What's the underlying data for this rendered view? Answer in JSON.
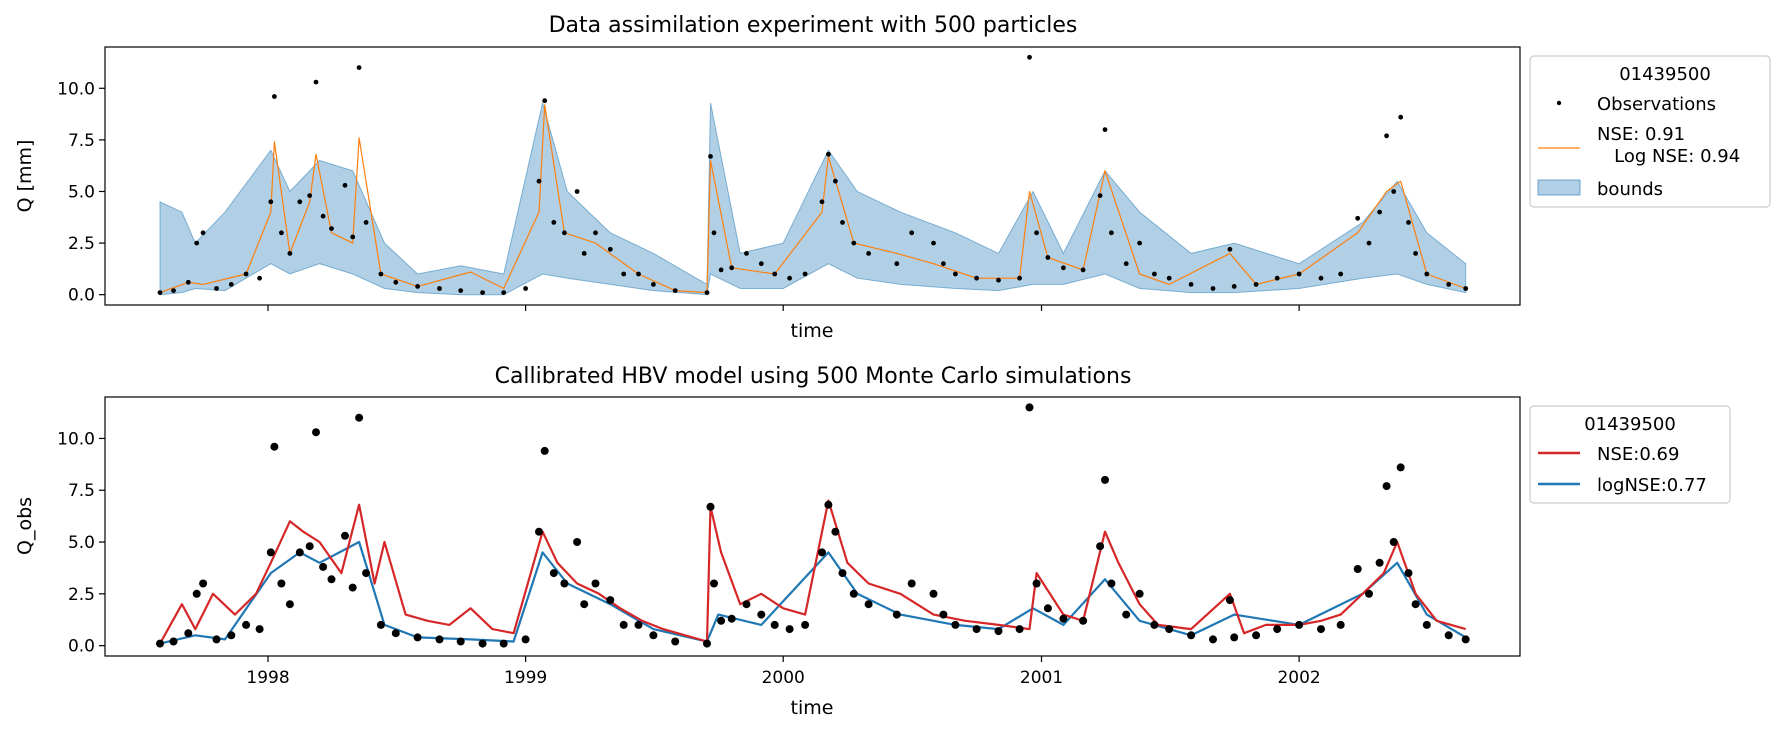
{
  "chart_data": [
    {
      "type": "line",
      "title": "Data assimilation experiment with 500 particles",
      "xlabel": "time",
      "ylabel": "Q [mm]",
      "x_tick_labels_visible": false,
      "xlim": [
        "1997-05-15",
        "2002-11-10"
      ],
      "ylim": [
        -0.5,
        12.0
      ],
      "yticks": [
        "0.0",
        "2.5",
        "5.0",
        "7.5",
        "10.0"
      ],
      "legend": {
        "title": "01439500",
        "placement": "outside-right-top",
        "entries": [
          {
            "label": "Observations",
            "kind": "marker",
            "color": "#000000"
          },
          {
            "label": "NSE: 0.91\n   Log NSE: 0.94",
            "kind": "line",
            "color": "#ff7f0e"
          },
          {
            "label": "bounds",
            "kind": "patch",
            "color": "#1f77b4"
          }
        ]
      },
      "series": [
        {
          "name": "Observations",
          "color": "#000000",
          "x": [
            "1997-08-01",
            "1997-08-20",
            "1997-09-10",
            "1997-09-22",
            "1997-10-01",
            "1997-10-20",
            "1997-11-10",
            "1997-12-01",
            "1997-12-20",
            "1998-01-05",
            "1998-01-10",
            "1998-01-20",
            "1998-02-01",
            "1998-02-15",
            "1998-03-01",
            "1998-03-10",
            "1998-03-20",
            "1998-04-01",
            "1998-04-20",
            "1998-05-01",
            "1998-05-10",
            "1998-05-20",
            "1998-06-10",
            "1998-07-01",
            "1998-08-01",
            "1998-09-01",
            "1998-10-01",
            "1998-11-01",
            "1998-12-01",
            "1999-01-01",
            "1999-01-20",
            "1999-01-28",
            "1999-02-10",
            "1999-02-25",
            "1999-03-15",
            "1999-03-25",
            "1999-04-10",
            "1999-05-01",
            "1999-05-20",
            "1999-06-10",
            "1999-07-01",
            "1999-08-01",
            "1999-09-15",
            "1999-09-20",
            "1999-09-25",
            "1999-10-05",
            "1999-10-20",
            "1999-11-10",
            "1999-12-01",
            "1999-12-20",
            "2000-01-10",
            "2000-02-01",
            "2000-02-25",
            "2000-03-05",
            "2000-03-15",
            "2000-03-25",
            "2000-04-10",
            "2000-05-01",
            "2000-06-10",
            "2000-07-01",
            "2000-08-01",
            "2000-08-15",
            "2000-09-01",
            "2000-10-01",
            "2000-11-01",
            "2000-12-01",
            "2000-12-15",
            "2000-12-25",
            "2001-01-10",
            "2001-02-01",
            "2001-03-01",
            "2001-03-25",
            "2001-04-01",
            "2001-04-10",
            "2001-05-01",
            "2001-05-20",
            "2001-06-10",
            "2001-07-01",
            "2001-08-01",
            "2001-09-01",
            "2001-09-25",
            "2001-10-01",
            "2001-11-01",
            "2001-12-01",
            "2002-01-01",
            "2002-02-01",
            "2002-03-01",
            "2002-03-25",
            "2002-04-10",
            "2002-04-25",
            "2002-05-05",
            "2002-05-15",
            "2002-05-25",
            "2002-06-05",
            "2002-06-15",
            "2002-07-01",
            "2002-08-01",
            "2002-08-25"
          ],
          "values": [
            0.1,
            0.2,
            0.6,
            2.5,
            3.0,
            0.3,
            0.5,
            1.0,
            0.8,
            4.5,
            9.6,
            3.0,
            2.0,
            4.5,
            4.8,
            10.3,
            3.8,
            3.2,
            5.3,
            2.8,
            11.0,
            3.5,
            1.0,
            0.6,
            0.4,
            0.3,
            0.2,
            0.1,
            0.1,
            0.3,
            5.5,
            9.4,
            3.5,
            3.0,
            5.0,
            2.0,
            3.0,
            2.2,
            1.0,
            1.0,
            0.5,
            0.2,
            0.1,
            6.7,
            3.0,
            1.2,
            1.3,
            2.0,
            1.5,
            1.0,
            0.8,
            1.0,
            4.5,
            6.8,
            5.5,
            3.5,
            2.5,
            2.0,
            1.5,
            3.0,
            2.5,
            1.5,
            1.0,
            0.8,
            0.7,
            0.8,
            11.5,
            3.0,
            1.8,
            1.3,
            1.2,
            4.8,
            8.0,
            3.0,
            1.5,
            2.5,
            1.0,
            0.8,
            0.5,
            0.3,
            2.2,
            0.4,
            0.5,
            0.8,
            1.0,
            0.8,
            1.0,
            3.7,
            2.5,
            4.0,
            7.7,
            5.0,
            8.6,
            3.5,
            2.0,
            1.0,
            0.5,
            0.3
          ]
        },
        {
          "name": "NSE: 0.91\n   Log NSE: 0.94",
          "color": "#ff7f0e",
          "x": [
            "1997-08-01",
            "1997-09-10",
            "1997-10-01",
            "1997-12-01",
            "1998-01-05",
            "1998-01-10",
            "1998-02-01",
            "1998-03-01",
            "1998-03-10",
            "1998-04-01",
            "1998-05-01",
            "1998-05-10",
            "1998-06-10",
            "1998-08-01",
            "1998-10-15",
            "1998-12-01",
            "1999-01-20",
            "1999-01-28",
            "1999-02-25",
            "1999-04-10",
            "1999-06-10",
            "1999-08-01",
            "1999-09-15",
            "1999-09-20",
            "1999-10-20",
            "1999-12-20",
            "2000-02-25",
            "2000-03-05",
            "2000-04-10",
            "2000-06-10",
            "2000-08-01",
            "2000-10-01",
            "2000-12-01",
            "2000-12-15",
            "2001-01-10",
            "2001-03-01",
            "2001-04-01",
            "2001-05-20",
            "2001-07-01",
            "2001-09-25",
            "2001-11-01",
            "2002-01-01",
            "2002-03-25",
            "2002-05-05",
            "2002-05-25",
            "2002-07-01",
            "2002-08-25"
          ],
          "values": [
            0.1,
            0.6,
            0.5,
            1.0,
            4.0,
            7.4,
            2.0,
            4.5,
            6.8,
            3.0,
            2.5,
            7.6,
            1.0,
            0.4,
            1.1,
            0.3,
            4.0,
            9.2,
            3.0,
            2.5,
            1.0,
            0.2,
            0.1,
            6.5,
            1.3,
            1.0,
            4.0,
            6.7,
            2.5,
            2.0,
            1.5,
            0.8,
            0.8,
            5.0,
            1.8,
            1.2,
            6.0,
            1.0,
            0.5,
            2.0,
            0.5,
            1.0,
            3.0,
            5.0,
            5.5,
            1.0,
            0.3
          ]
        },
        {
          "name": "bounds",
          "color": "#1f77b4",
          "type": "area",
          "x": [
            "1997-08-01",
            "1997-09-01",
            "1997-09-20",
            "1997-11-01",
            "1998-01-05",
            "1998-02-01",
            "1998-03-15",
            "1998-05-01",
            "1998-06-15",
            "1998-08-01",
            "1998-10-01",
            "1998-12-01",
            "1999-01-25",
            "1999-03-01",
            "1999-05-01",
            "1999-07-01",
            "1999-09-15",
            "1999-09-20",
            "1999-11-01",
            "2000-01-01",
            "2000-03-05",
            "2000-04-15",
            "2000-06-15",
            "2000-09-01",
            "2000-11-01",
            "2000-12-20",
            "2001-02-01",
            "2001-04-01",
            "2001-05-20",
            "2001-08-01",
            "2001-10-01",
            "2002-01-01",
            "2002-04-01",
            "2002-05-20",
            "2002-07-01",
            "2002-08-25"
          ],
          "upper": [
            4.5,
            4.0,
            2.5,
            4.0,
            7.0,
            5.0,
            6.5,
            6.0,
            2.5,
            1.0,
            1.4,
            1.0,
            9.3,
            5.0,
            3.0,
            2.0,
            0.5,
            9.3,
            2.0,
            2.5,
            7.0,
            5.0,
            4.0,
            3.0,
            2.0,
            5.0,
            2.0,
            6.0,
            4.0,
            2.0,
            2.5,
            1.5,
            3.5,
            5.5,
            3.0,
            1.5
          ],
          "lower": [
            0.0,
            0.1,
            0.3,
            0.2,
            1.5,
            1.0,
            1.5,
            1.0,
            0.3,
            0.1,
            0.0,
            0.0,
            1.0,
            0.8,
            0.5,
            0.2,
            0.0,
            1.0,
            0.3,
            0.3,
            1.5,
            0.8,
            0.5,
            0.3,
            0.2,
            0.5,
            0.5,
            1.0,
            0.3,
            0.1,
            0.1,
            0.3,
            0.8,
            1.0,
            0.5,
            0.1
          ]
        }
      ]
    },
    {
      "type": "line",
      "title": "Callibrated HBV model using 500 Monte Carlo simulations",
      "xlabel": "time",
      "ylabel": "Q_obs",
      "xlim": [
        "1997-05-15",
        "2002-11-10"
      ],
      "ylim": [
        -0.5,
        12.0
      ],
      "yticks": [
        "0.0",
        "2.5",
        "5.0",
        "7.5",
        "10.0"
      ],
      "xticks": [
        {
          "date": "1998-01-01",
          "label": "1998"
        },
        {
          "date": "1999-01-01",
          "label": "1999"
        },
        {
          "date": "2000-01-01",
          "label": "2000"
        },
        {
          "date": "2001-01-01",
          "label": "2001"
        },
        {
          "date": "2002-01-01",
          "label": "2002"
        }
      ],
      "legend": {
        "title": "01439500",
        "placement": "outside-right-top",
        "entries": [
          {
            "label": "NSE:0.69",
            "kind": "line",
            "color": "#d62728"
          },
          {
            "label": "logNSE:0.77",
            "kind": "line",
            "color": "#1f77b4"
          }
        ]
      },
      "series": [
        {
          "name": "logNSE:0.77",
          "color": "#1f77b4",
          "x": [
            "1997-08-01",
            "1997-09-20",
            "1997-11-01",
            "1998-01-05",
            "1998-02-15",
            "1998-03-15",
            "1998-05-10",
            "1998-06-15",
            "1998-08-01",
            "1998-10-15",
            "1998-12-15",
            "1999-01-25",
            "1999-03-01",
            "1999-05-01",
            "1999-07-01",
            "1999-09-15",
            "1999-10-01",
            "1999-12-01",
            "2000-03-05",
            "2000-04-15",
            "2000-06-15",
            "2000-09-01",
            "2000-11-01",
            "2000-12-20",
            "2001-02-01",
            "2001-04-01",
            "2001-05-20",
            "2001-08-01",
            "2001-10-01",
            "2002-01-01",
            "2002-04-01",
            "2002-05-20",
            "2002-07-01",
            "2002-08-25"
          ],
          "values": [
            0.1,
            0.5,
            0.3,
            3.5,
            4.5,
            4.0,
            5.0,
            1.0,
            0.4,
            0.3,
            0.2,
            4.5,
            3.0,
            2.0,
            0.8,
            0.2,
            1.5,
            1.0,
            4.5,
            2.5,
            1.5,
            1.0,
            0.8,
            1.8,
            1.0,
            3.2,
            1.2,
            0.5,
            1.5,
            1.0,
            2.5,
            4.0,
            1.5,
            0.4
          ]
        },
        {
          "name": "NSE:0.69",
          "color": "#d62728",
          "x": [
            "1997-08-01",
            "1997-09-01",
            "1997-09-20",
            "1997-10-15",
            "1997-11-15",
            "1997-12-15",
            "1998-01-05",
            "1998-02-01",
            "1998-02-20",
            "1998-03-15",
            "1998-04-15",
            "1998-05-10",
            "1998-06-01",
            "1998-06-15",
            "1998-07-15",
            "1998-08-15",
            "1998-09-15",
            "1998-10-15",
            "1998-11-15",
            "1998-12-15",
            "1999-01-25",
            "1999-02-15",
            "1999-03-15",
            "1999-04-15",
            "1999-05-15",
            "1999-06-15",
            "1999-07-15",
            "1999-08-15",
            "1999-09-15",
            "1999-09-20",
            "1999-10-05",
            "1999-11-01",
            "1999-12-01",
            "2000-01-01",
            "2000-02-01",
            "2000-03-05",
            "2000-04-01",
            "2000-05-01",
            "2000-06-15",
            "2000-08-01",
            "2000-09-15",
            "2000-11-01",
            "2000-12-15",
            "2000-12-25",
            "2001-02-01",
            "2001-03-01",
            "2001-04-01",
            "2001-04-20",
            "2001-05-20",
            "2001-06-15",
            "2001-08-01",
            "2001-09-25",
            "2001-10-15",
            "2001-11-15",
            "2002-01-01",
            "2002-02-01",
            "2002-03-01",
            "2002-04-01",
            "2002-05-01",
            "2002-05-20",
            "2002-06-15",
            "2002-07-15",
            "2002-08-25"
          ],
          "values": [
            0.1,
            2.0,
            0.8,
            2.5,
            1.5,
            2.5,
            4.0,
            6.0,
            5.5,
            5.0,
            3.5,
            6.8,
            3.0,
            5.0,
            1.5,
            1.2,
            1.0,
            1.8,
            0.8,
            0.6,
            5.5,
            4.0,
            3.0,
            2.5,
            1.8,
            1.2,
            0.8,
            0.5,
            0.2,
            6.7,
            4.5,
            2.0,
            2.5,
            1.8,
            1.5,
            7.0,
            4.0,
            3.0,
            2.5,
            1.5,
            1.2,
            1.0,
            0.8,
            3.5,
            1.5,
            1.2,
            5.5,
            4.0,
            2.0,
            1.0,
            0.8,
            2.5,
            0.6,
            1.0,
            1.0,
            1.2,
            1.5,
            2.5,
            3.5,
            5.0,
            2.5,
            1.2,
            0.8
          ]
        },
        {
          "name": "Q_obs",
          "color": "#000000",
          "type": "scatter",
          "x": [
            "1997-08-01",
            "1997-08-20",
            "1997-09-10",
            "1997-09-22",
            "1997-10-01",
            "1997-10-20",
            "1997-11-10",
            "1997-12-01",
            "1997-12-20",
            "1998-01-05",
            "1998-01-10",
            "1998-01-20",
            "1998-02-01",
            "1998-02-15",
            "1998-03-01",
            "1998-03-10",
            "1998-03-20",
            "1998-04-01",
            "1998-04-20",
            "1998-05-01",
            "1998-05-10",
            "1998-05-20",
            "1998-06-10",
            "1998-07-01",
            "1998-08-01",
            "1998-09-01",
            "1998-10-01",
            "1998-11-01",
            "1998-12-01",
            "1999-01-01",
            "1999-01-20",
            "1999-01-28",
            "1999-02-10",
            "1999-02-25",
            "1999-03-15",
            "1999-03-25",
            "1999-04-10",
            "1999-05-01",
            "1999-05-20",
            "1999-06-10",
            "1999-07-01",
            "1999-08-01",
            "1999-09-15",
            "1999-09-20",
            "1999-09-25",
            "1999-10-05",
            "1999-10-20",
            "1999-11-10",
            "1999-12-01",
            "1999-12-20",
            "2000-01-10",
            "2000-02-01",
            "2000-02-25",
            "2000-03-05",
            "2000-03-15",
            "2000-03-25",
            "2000-04-10",
            "2000-05-01",
            "2000-06-10",
            "2000-07-01",
            "2000-08-01",
            "2000-08-15",
            "2000-09-01",
            "2000-10-01",
            "2000-11-01",
            "2000-12-01",
            "2000-12-15",
            "2000-12-25",
            "2001-01-10",
            "2001-02-01",
            "2001-03-01",
            "2001-03-25",
            "2001-04-01",
            "2001-04-10",
            "2001-05-01",
            "2001-05-20",
            "2001-06-10",
            "2001-07-01",
            "2001-08-01",
            "2001-09-01",
            "2001-09-25",
            "2001-10-01",
            "2001-11-01",
            "2001-12-01",
            "2002-01-01",
            "2002-02-01",
            "2002-03-01",
            "2002-03-25",
            "2002-04-10",
            "2002-04-25",
            "2002-05-05",
            "2002-05-15",
            "2002-05-25",
            "2002-06-05",
            "2002-06-15",
            "2002-07-01",
            "2002-08-01",
            "2002-08-25"
          ],
          "values": [
            0.1,
            0.2,
            0.6,
            2.5,
            3.0,
            0.3,
            0.5,
            1.0,
            0.8,
            4.5,
            9.6,
            3.0,
            2.0,
            4.5,
            4.8,
            10.3,
            3.8,
            3.2,
            5.3,
            2.8,
            11.0,
            3.5,
            1.0,
            0.6,
            0.4,
            0.3,
            0.2,
            0.1,
            0.1,
            0.3,
            5.5,
            9.4,
            3.5,
            3.0,
            5.0,
            2.0,
            3.0,
            2.2,
            1.0,
            1.0,
            0.5,
            0.2,
            0.1,
            6.7,
            3.0,
            1.2,
            1.3,
            2.0,
            1.5,
            1.0,
            0.8,
            1.0,
            4.5,
            6.8,
            5.5,
            3.5,
            2.5,
            2.0,
            1.5,
            3.0,
            2.5,
            1.5,
            1.0,
            0.8,
            0.7,
            0.8,
            11.5,
            3.0,
            1.8,
            1.3,
            1.2,
            4.8,
            8.0,
            3.0,
            1.5,
            2.5,
            1.0,
            0.8,
            0.5,
            0.3,
            2.2,
            0.4,
            0.5,
            0.8,
            1.0,
            0.8,
            1.0,
            3.7,
            2.5,
            4.0,
            7.7,
            5.0,
            8.6,
            3.5,
            2.0,
            1.0,
            0.5,
            0.3
          ]
        }
      ]
    }
  ]
}
